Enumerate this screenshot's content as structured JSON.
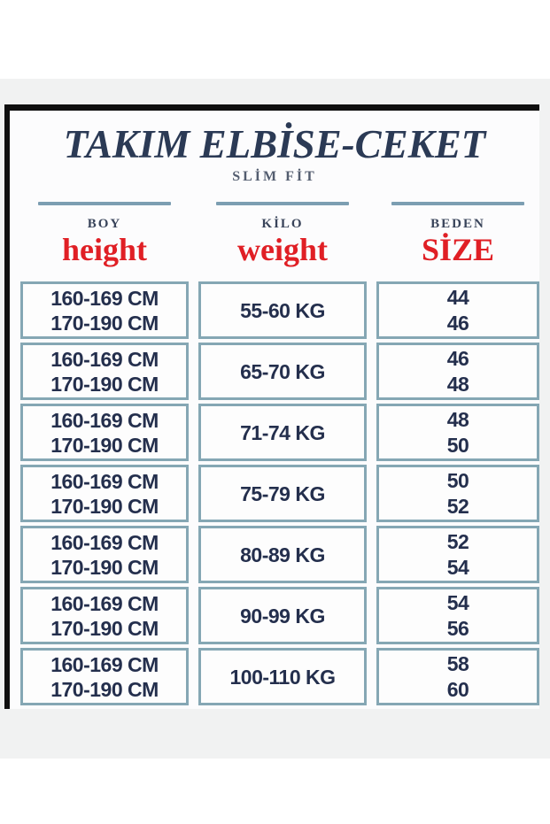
{
  "title": "TAKIM ELBİSE-CEKET",
  "subtitle": "SLİM FİT",
  "columns": [
    {
      "label": "BOY",
      "annotation": "height"
    },
    {
      "label": "KİLO",
      "annotation": "weight"
    },
    {
      "label": "BEDEN",
      "annotation": "SİZE"
    }
  ],
  "table": {
    "rows": [
      {
        "height": [
          "160-169 CM",
          "170-190 CM"
        ],
        "weight": "55-60 KG",
        "sizes": [
          "44",
          "46"
        ]
      },
      {
        "height": [
          "160-169 CM",
          "170-190 CM"
        ],
        "weight": "65-70 KG",
        "sizes": [
          "46",
          "48"
        ]
      },
      {
        "height": [
          "160-169 CM",
          "170-190 CM"
        ],
        "weight": "71-74 KG",
        "sizes": [
          "48",
          "50"
        ]
      },
      {
        "height": [
          "160-169 CM",
          "170-190 CM"
        ],
        "weight": "75-79 KG",
        "sizes": [
          "50",
          "52"
        ]
      },
      {
        "height": [
          "160-169 CM",
          "170-190 CM"
        ],
        "weight": "80-89 KG",
        "sizes": [
          "52",
          "54"
        ]
      },
      {
        "height": [
          "160-169 CM",
          "170-190 CM"
        ],
        "weight": "90-99 KG",
        "sizes": [
          "54",
          "56"
        ]
      },
      {
        "height": [
          "160-169 CM",
          "170-190 CM"
        ],
        "weight": "100-110 KG",
        "sizes": [
          "58",
          "60"
        ]
      }
    ]
  },
  "colors": {
    "accent_red": "#e01f25",
    "title_navy": "#2b3a55",
    "cell_text_navy": "#242f4d",
    "cell_border_teal": "#85a7b4",
    "rule_steel_blue": "#7c9eb2",
    "photo_background_gray": "#f1f2f2",
    "panel_border_black": "#0f0f0f"
  }
}
